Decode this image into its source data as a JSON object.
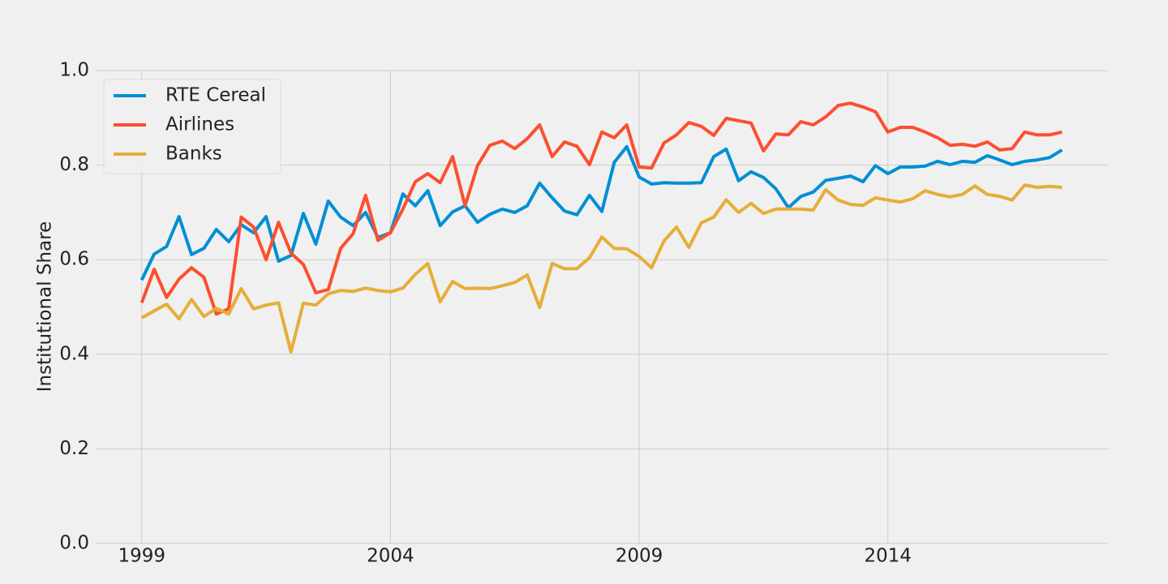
{
  "chart_data": {
    "type": "line",
    "ylabel": "Institutional Share",
    "x": [
      1999,
      1999.25,
      1999.5,
      1999.75,
      2000,
      2000.25,
      2000.5,
      2000.75,
      2001,
      2001.25,
      2001.5,
      2001.75,
      2002,
      2002.25,
      2002.5,
      2002.75,
      2003,
      2003.25,
      2003.5,
      2003.75,
      2004,
      2004.25,
      2004.5,
      2004.75,
      2005,
      2005.25,
      2005.5,
      2005.75,
      2006,
      2006.25,
      2006.5,
      2006.75,
      2007,
      2007.25,
      2007.5,
      2007.75,
      2008,
      2008.25,
      2008.5,
      2008.75,
      2009,
      2009.25,
      2009.5,
      2009.75,
      2010,
      2010.25,
      2010.5,
      2010.75,
      2011,
      2011.25,
      2011.5,
      2011.75,
      2012,
      2012.25,
      2012.5,
      2012.75,
      2013,
      2013.25,
      2013.5,
      2013.75,
      2014,
      2014.25,
      2014.5,
      2014.75,
      2015,
      2015.25,
      2015.5,
      2015.75,
      2016,
      2016.25,
      2016.5,
      2016.75,
      2017,
      2017.25,
      2017.5
    ],
    "series": [
      {
        "name": "RTE Cereal",
        "color": "#008fd5",
        "values": [
          0.557,
          0.612,
          0.628,
          0.691,
          0.611,
          0.624,
          0.664,
          0.638,
          0.674,
          0.657,
          0.691,
          0.597,
          0.609,
          0.698,
          0.633,
          0.724,
          0.69,
          0.672,
          0.7,
          0.647,
          0.657,
          0.739,
          0.714,
          0.746,
          0.672,
          0.701,
          0.714,
          0.679,
          0.696,
          0.707,
          0.7,
          0.714,
          0.762,
          0.731,
          0.703,
          0.695,
          0.736,
          0.702,
          0.806,
          0.839,
          0.775,
          0.76,
          0.763,
          0.762,
          0.762,
          0.763,
          0.818,
          0.834,
          0.767,
          0.786,
          0.774,
          0.75,
          0.71,
          0.734,
          0.743,
          0.768,
          0.772,
          0.777,
          0.765,
          0.799,
          0.782,
          0.796,
          0.796,
          0.798,
          0.808,
          0.801,
          0.808,
          0.806,
          0.82,
          0.811,
          0.801,
          0.808,
          0.811,
          0.816,
          0.832
        ]
      },
      {
        "name": "Airlines",
        "color": "#fc4f30",
        "values": [
          0.509,
          0.58,
          0.52,
          0.559,
          0.583,
          0.563,
          0.485,
          0.496,
          0.69,
          0.669,
          0.6,
          0.679,
          0.614,
          0.59,
          0.53,
          0.537,
          0.624,
          0.655,
          0.736,
          0.641,
          0.657,
          0.707,
          0.765,
          0.782,
          0.763,
          0.818,
          0.714,
          0.799,
          0.842,
          0.851,
          0.835,
          0.856,
          0.885,
          0.818,
          0.849,
          0.84,
          0.801,
          0.87,
          0.858,
          0.885,
          0.796,
          0.794,
          0.847,
          0.864,
          0.89,
          0.882,
          0.863,
          0.899,
          0.894,
          0.889,
          0.83,
          0.866,
          0.864,
          0.892,
          0.885,
          0.902,
          0.926,
          0.931,
          0.923,
          0.913,
          0.87,
          0.88,
          0.88,
          0.87,
          0.858,
          0.842,
          0.844,
          0.84,
          0.849,
          0.832,
          0.835,
          0.87,
          0.864,
          0.864,
          0.87
        ]
      },
      {
        "name": "Banks",
        "color": "#e5ae38",
        "values": [
          0.477,
          0.492,
          0.506,
          0.475,
          0.516,
          0.48,
          0.497,
          0.485,
          0.539,
          0.496,
          0.504,
          0.509,
          0.405,
          0.508,
          0.504,
          0.528,
          0.535,
          0.533,
          0.54,
          0.535,
          0.532,
          0.54,
          0.569,
          0.592,
          0.511,
          0.554,
          0.539,
          0.54,
          0.539,
          0.545,
          0.552,
          0.568,
          0.499,
          0.592,
          0.581,
          0.581,
          0.604,
          0.648,
          0.624,
          0.623,
          0.607,
          0.583,
          0.64,
          0.669,
          0.626,
          0.678,
          0.69,
          0.727,
          0.7,
          0.719,
          0.698,
          0.707,
          0.707,
          0.707,
          0.705,
          0.748,
          0.726,
          0.717,
          0.715,
          0.731,
          0.726,
          0.722,
          0.729,
          0.746,
          0.738,
          0.733,
          0.738,
          0.756,
          0.738,
          0.734,
          0.726,
          0.758,
          0.753,
          0.755,
          0.753
        ]
      }
    ],
    "xlim": [
      1998.075,
      2018.425
    ],
    "xticks": [
      1999,
      2004,
      2009,
      2014
    ],
    "ylim": [
      0,
      1
    ],
    "yticks": [
      {
        "value": 0,
        "label": "0.0"
      },
      0.2,
      0.4,
      0.6,
      0.8,
      {
        "value": 1,
        "label": "1.0"
      }
    ],
    "grid": true,
    "legend": "upper-left"
  }
}
